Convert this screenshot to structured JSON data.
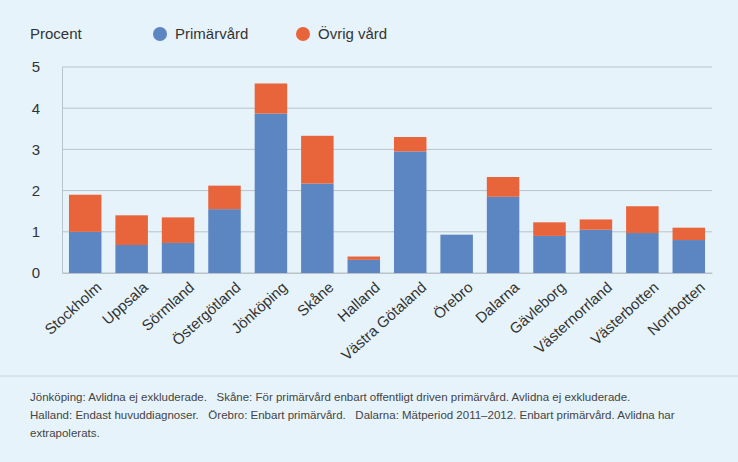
{
  "chart_data": {
    "type": "bar",
    "stacked": true,
    "y_label": "Procent",
    "legend": "top",
    "grid": true,
    "categories": [
      "Stockholm",
      "Uppsala",
      "Sörmland",
      "Östergötland",
      "Jönköping",
      "Skåne",
      "Halland",
      "Västra Götaland",
      "Örebro",
      "Dalarna",
      "Gävleborg",
      "Västernorrland",
      "Västerbotten",
      "Norrbotten"
    ],
    "series": [
      {
        "name": "Primärvård",
        "color": "#5b86c2",
        "values": [
          1.0,
          0.68,
          0.73,
          1.55,
          3.87,
          2.17,
          0.32,
          2.95,
          0.93,
          1.85,
          0.9,
          1.05,
          0.97,
          0.8
        ]
      },
      {
        "name": "Övrig vård",
        "color": "#e8643a",
        "values": [
          0.9,
          0.72,
          0.62,
          0.57,
          0.73,
          1.16,
          0.08,
          0.35,
          0,
          0.48,
          0.33,
          0.25,
          0.65,
          0.3
        ]
      }
    ],
    "ylim": [
      0,
      5
    ],
    "yticks": [
      0,
      1,
      2,
      3,
      4,
      5
    ],
    "notes": [
      "Jönköping: Avlidna ej exkluderade.   Skåne: För primärvård enbart offentligt driven primärvård. Avlidna ej exkluderade.",
      "Halland: Endast huvuddiagnoser.   Örebro: Enbart primärvård.   Dalarna: Mätperiod 2011–2012. Enbart primärvård. Avlidna har",
      "extrapolerats."
    ]
  }
}
